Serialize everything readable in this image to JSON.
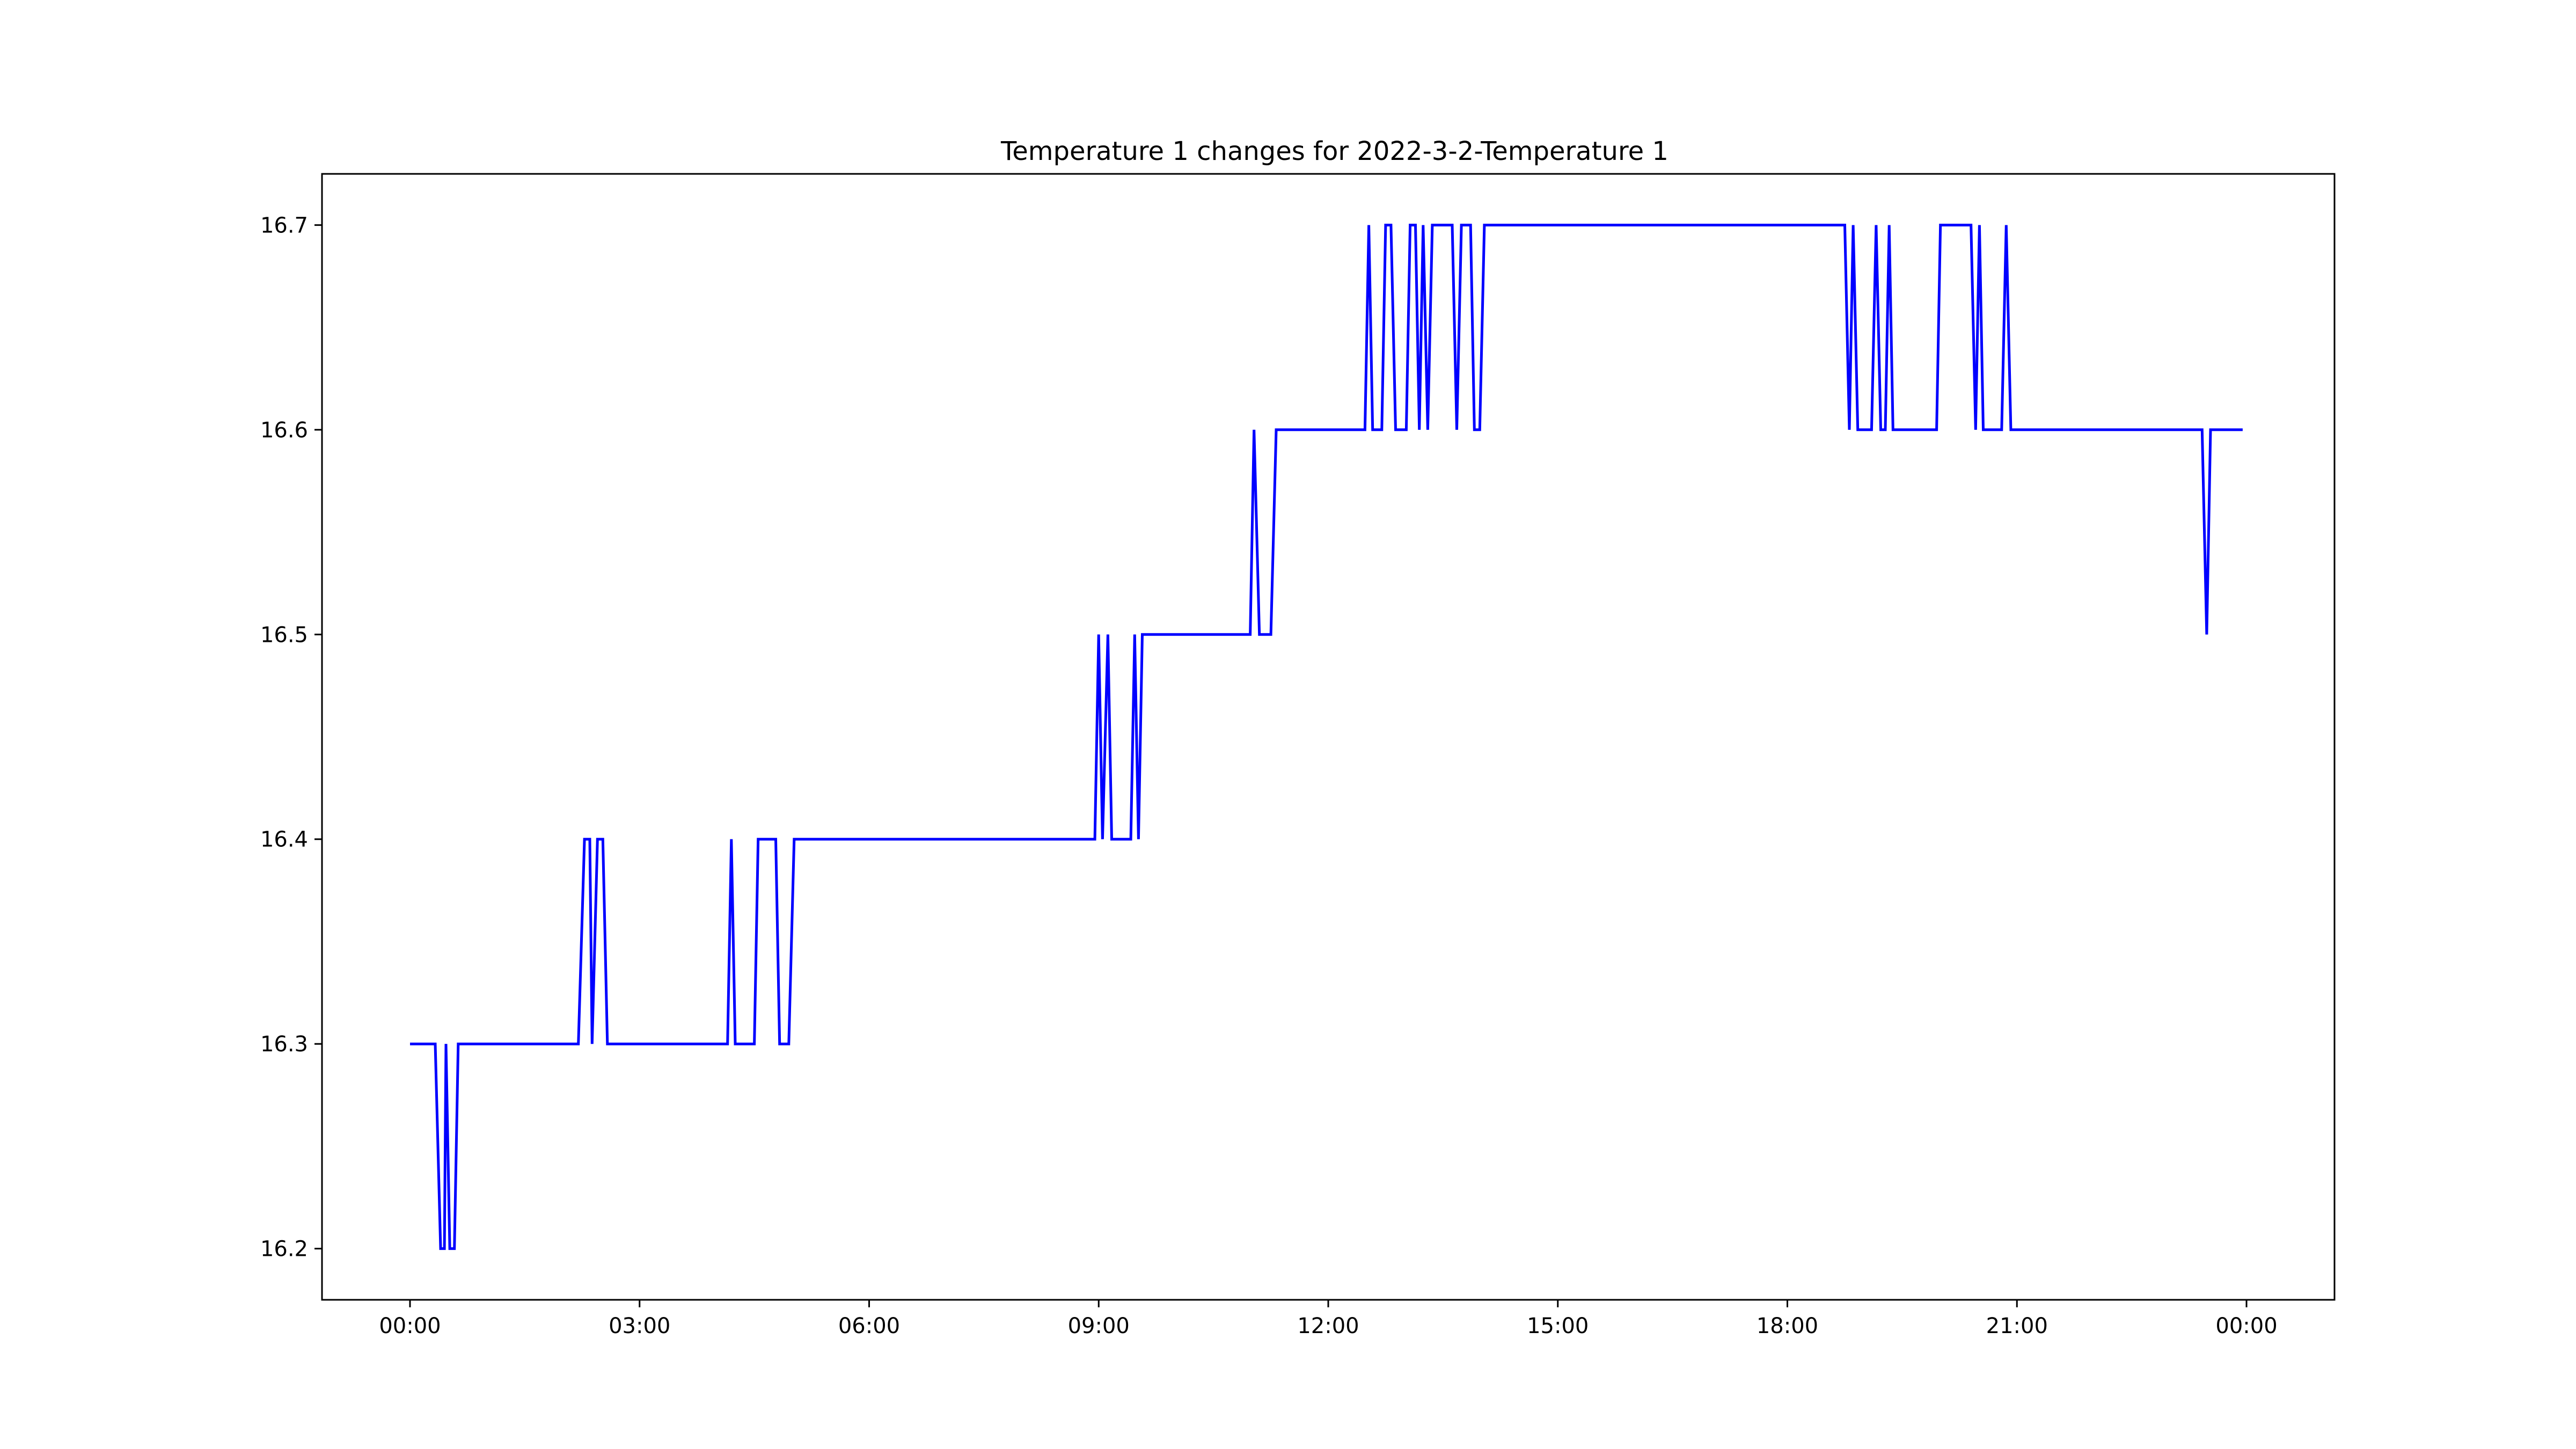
{
  "chart_data": {
    "type": "line",
    "title": "Temperature 1 changes for 2022-3-2-Temperature 1",
    "xlabel": "",
    "ylabel": "",
    "x_unit": "hours",
    "xlim": [
      -1.15,
      25.15
    ],
    "ylim": [
      16.175,
      16.725
    ],
    "grid": false,
    "line_color": "#0000ff",
    "x_ticks": [
      {
        "value": 0,
        "label": "00:00"
      },
      {
        "value": 3,
        "label": "03:00"
      },
      {
        "value": 6,
        "label": "06:00"
      },
      {
        "value": 9,
        "label": "09:00"
      },
      {
        "value": 12,
        "label": "12:00"
      },
      {
        "value": 15,
        "label": "15:00"
      },
      {
        "value": 18,
        "label": "18:00"
      },
      {
        "value": 21,
        "label": "21:00"
      },
      {
        "value": 24,
        "label": "00:00"
      }
    ],
    "y_ticks": [
      {
        "value": 16.2,
        "label": "16.2"
      },
      {
        "value": 16.3,
        "label": "16.3"
      },
      {
        "value": 16.4,
        "label": "16.4"
      },
      {
        "value": 16.5,
        "label": "16.5"
      },
      {
        "value": 16.6,
        "label": "16.6"
      },
      {
        "value": 16.7,
        "label": "16.7"
      }
    ],
    "series": [
      {
        "points": [
          [
            0.0,
            16.3
          ],
          [
            0.33,
            16.3
          ],
          [
            0.4,
            16.2
          ],
          [
            0.45,
            16.2
          ],
          [
            0.47,
            16.3
          ],
          [
            0.52,
            16.2
          ],
          [
            0.58,
            16.2
          ],
          [
            0.63,
            16.3
          ],
          [
            2.2,
            16.3
          ],
          [
            2.28,
            16.4
          ],
          [
            2.35,
            16.4
          ],
          [
            2.38,
            16.3
          ],
          [
            2.45,
            16.4
          ],
          [
            2.52,
            16.4
          ],
          [
            2.58,
            16.3
          ],
          [
            4.15,
            16.3
          ],
          [
            4.2,
            16.4
          ],
          [
            4.25,
            16.3
          ],
          [
            4.5,
            16.3
          ],
          [
            4.55,
            16.4
          ],
          [
            4.78,
            16.4
          ],
          [
            4.83,
            16.3
          ],
          [
            4.95,
            16.3
          ],
          [
            5.02,
            16.4
          ],
          [
            8.95,
            16.4
          ],
          [
            9.0,
            16.5
          ],
          [
            9.05,
            16.4
          ],
          [
            9.12,
            16.5
          ],
          [
            9.17,
            16.4
          ],
          [
            9.42,
            16.4
          ],
          [
            9.47,
            16.5
          ],
          [
            9.52,
            16.4
          ],
          [
            9.57,
            16.5
          ],
          [
            10.98,
            16.5
          ],
          [
            11.03,
            16.6
          ],
          [
            11.1,
            16.5
          ],
          [
            11.25,
            16.5
          ],
          [
            11.32,
            16.6
          ],
          [
            12.48,
            16.6
          ],
          [
            12.53,
            16.7
          ],
          [
            12.58,
            16.6
          ],
          [
            12.7,
            16.6
          ],
          [
            12.75,
            16.7
          ],
          [
            12.82,
            16.7
          ],
          [
            12.88,
            16.6
          ],
          [
            13.02,
            16.6
          ],
          [
            13.07,
            16.7
          ],
          [
            13.14,
            16.7
          ],
          [
            13.19,
            16.6
          ],
          [
            13.24,
            16.7
          ],
          [
            13.3,
            16.6
          ],
          [
            13.36,
            16.7
          ],
          [
            13.62,
            16.7
          ],
          [
            13.68,
            16.6
          ],
          [
            13.74,
            16.7
          ],
          [
            13.86,
            16.7
          ],
          [
            13.91,
            16.6
          ],
          [
            13.98,
            16.6
          ],
          [
            14.04,
            16.7
          ],
          [
            18.75,
            16.7
          ],
          [
            18.81,
            16.6
          ],
          [
            18.86,
            16.7
          ],
          [
            18.92,
            16.6
          ],
          [
            19.1,
            16.6
          ],
          [
            19.16,
            16.7
          ],
          [
            19.22,
            16.6
          ],
          [
            19.28,
            16.6
          ],
          [
            19.33,
            16.7
          ],
          [
            19.38,
            16.6
          ],
          [
            19.95,
            16.6
          ],
          [
            20.0,
            16.7
          ],
          [
            20.4,
            16.7
          ],
          [
            20.46,
            16.6
          ],
          [
            20.51,
            16.7
          ],
          [
            20.56,
            16.6
          ],
          [
            20.8,
            16.6
          ],
          [
            20.86,
            16.7
          ],
          [
            20.92,
            16.6
          ],
          [
            23.42,
            16.6
          ],
          [
            23.48,
            16.5
          ],
          [
            23.53,
            16.6
          ],
          [
            23.95,
            16.6
          ]
        ]
      }
    ]
  }
}
